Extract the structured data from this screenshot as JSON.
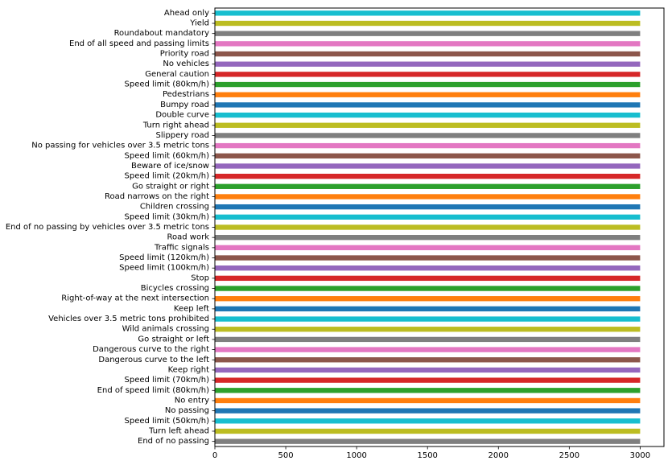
{
  "chart_data": {
    "type": "bar",
    "orientation": "horizontal",
    "categories": [
      "Ahead only",
      "Yield",
      "Roundabout mandatory",
      "End of all speed and passing limits",
      "Priority road",
      "No vehicles",
      "General caution",
      "Speed limit (80km/h)",
      "Pedestrians",
      "Bumpy road",
      "Double curve",
      "Turn right ahead",
      "Slippery road",
      "No passing for vehicles over 3.5 metric tons",
      "Speed limit (60km/h)",
      "Beware of ice/snow",
      "Speed limit (20km/h)",
      "Go straight or right",
      "Road narrows on the right",
      "Children crossing",
      "Speed limit (30km/h)",
      "End of no passing by vehicles over 3.5 metric tons",
      "Road work",
      "Traffic signals",
      "Speed limit (120km/h)",
      "Speed limit (100km/h)",
      "Stop",
      "Bicycles crossing",
      "Right-of-way at the next intersection",
      "Keep left",
      "Vehicles over 3.5 metric tons prohibited",
      "Wild animals crossing",
      "Go straight or left",
      "Dangerous curve to the right",
      "Dangerous curve to the left",
      "Keep right",
      "Speed limit (70km/h)",
      "End of speed limit (80km/h)",
      "No entry",
      "No passing",
      "Speed limit (50km/h)",
      "Turn left ahead",
      "End of no passing"
    ],
    "values": [
      3000,
      3000,
      3000,
      3000,
      3000,
      3000,
      3000,
      3000,
      3000,
      3000,
      3000,
      3000,
      3000,
      3000,
      3000,
      3000,
      3000,
      3000,
      3000,
      3000,
      3000,
      3000,
      3000,
      3000,
      3000,
      3000,
      3000,
      3000,
      3000,
      3000,
      3000,
      3000,
      3000,
      3000,
      3000,
      3000,
      3000,
      3000,
      3000,
      3000,
      3000,
      3000,
      3000
    ],
    "colors": [
      "#17becf",
      "#bcbd22",
      "#7f7f7f",
      "#e377c2",
      "#8c564b",
      "#9467bd",
      "#d62728",
      "#2ca02c",
      "#ff7f0e",
      "#1f77b4"
    ],
    "xticks": [
      0,
      500,
      1000,
      1500,
      2000,
      2500,
      3000
    ],
    "xlim": [
      0,
      3168
    ],
    "title": "",
    "xlabel": "",
    "ylabel": "",
    "grid": false,
    "legend": false
  }
}
